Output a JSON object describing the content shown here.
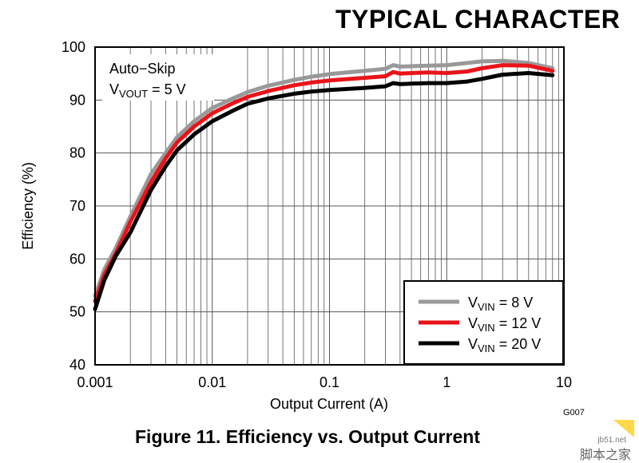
{
  "page": {
    "header_title": "TYPICAL CHARACTER",
    "caption": "Figure 11. Efficiency vs. Output Current",
    "figure_code": "G007"
  },
  "watermark": {
    "url": "jb51.net",
    "site": "脚本之家"
  },
  "chart_data": {
    "type": "line",
    "xlabel": "Output Current (A)",
    "ylabel": "Efficiency (%)",
    "xscale": "log",
    "xlim": [
      0.001,
      10
    ],
    "ylim": [
      40,
      100
    ],
    "x_ticks": [
      0.001,
      0.01,
      0.1,
      1,
      10
    ],
    "x_tick_labels": [
      "0.001",
      "0.01",
      "0.1",
      "1",
      "10"
    ],
    "y_ticks": [
      40,
      50,
      60,
      70,
      80,
      90,
      100
    ],
    "y_tick_labels": [
      "40",
      "50",
      "60",
      "70",
      "80",
      "90",
      "100"
    ],
    "grid": true,
    "annotation": {
      "line1": "Auto−Skip",
      "line2_prefix": "V",
      "line2_sub": "VOUT",
      "line2_suffix": " = 5 V"
    },
    "legend_position": "bottom-right",
    "series": [
      {
        "name": "VVIN = 8 V",
        "label_prefix": "V",
        "label_sub": "VIN",
        "label_suffix": " = 8 V",
        "color": "#999999",
        "x": [
          0.001,
          0.0012,
          0.0015,
          0.002,
          0.003,
          0.004,
          0.005,
          0.007,
          0.01,
          0.015,
          0.02,
          0.03,
          0.05,
          0.07,
          0.1,
          0.2,
          0.3,
          0.35,
          0.4,
          0.5,
          0.7,
          1,
          1.5,
          2,
          3,
          5,
          8
        ],
        "y": [
          53,
          58,
          62,
          68,
          76,
          80,
          83,
          86,
          88.5,
          90.3,
          91.5,
          92.7,
          93.8,
          94.4,
          94.9,
          95.5,
          95.9,
          96.6,
          96.3,
          96.4,
          96.5,
          96.6,
          97,
          97.3,
          97.4,
          97,
          96
        ]
      },
      {
        "name": "VVIN = 12 V",
        "label_prefix": "V",
        "label_sub": "VIN",
        "label_suffix": " = 12 V",
        "color": "#e8141a",
        "x": [
          0.001,
          0.0012,
          0.0015,
          0.002,
          0.003,
          0.004,
          0.005,
          0.007,
          0.01,
          0.015,
          0.02,
          0.03,
          0.05,
          0.07,
          0.1,
          0.2,
          0.3,
          0.35,
          0.4,
          0.5,
          0.7,
          1,
          1.5,
          2,
          3,
          5,
          8
        ],
        "y": [
          52,
          57,
          61,
          67,
          74.5,
          79,
          82,
          85,
          87.5,
          89.4,
          90.6,
          91.7,
          92.8,
          93.3,
          93.7,
          94.2,
          94.5,
          95.3,
          95,
          95.1,
          95.2,
          95.1,
          95.4,
          96,
          96.6,
          96.5,
          95.5
        ]
      },
      {
        "name": "VVIN = 20 V",
        "label_prefix": "V",
        "label_sub": "VIN",
        "label_suffix": " = 20 V",
        "color": "#000000",
        "x": [
          0.001,
          0.0012,
          0.0015,
          0.002,
          0.003,
          0.004,
          0.005,
          0.007,
          0.01,
          0.015,
          0.02,
          0.03,
          0.05,
          0.07,
          0.1,
          0.2,
          0.3,
          0.35,
          0.4,
          0.5,
          0.7,
          1,
          1.5,
          2,
          3,
          5,
          8
        ],
        "y": [
          50.5,
          56,
          60.5,
          65,
          73,
          77.5,
          80.5,
          83.5,
          86,
          88,
          89.3,
          90.3,
          91.2,
          91.6,
          91.9,
          92.3,
          92.6,
          93.2,
          93,
          93.1,
          93.2,
          93.2,
          93.5,
          94,
          94.8,
          95.1,
          94.7
        ]
      }
    ]
  }
}
